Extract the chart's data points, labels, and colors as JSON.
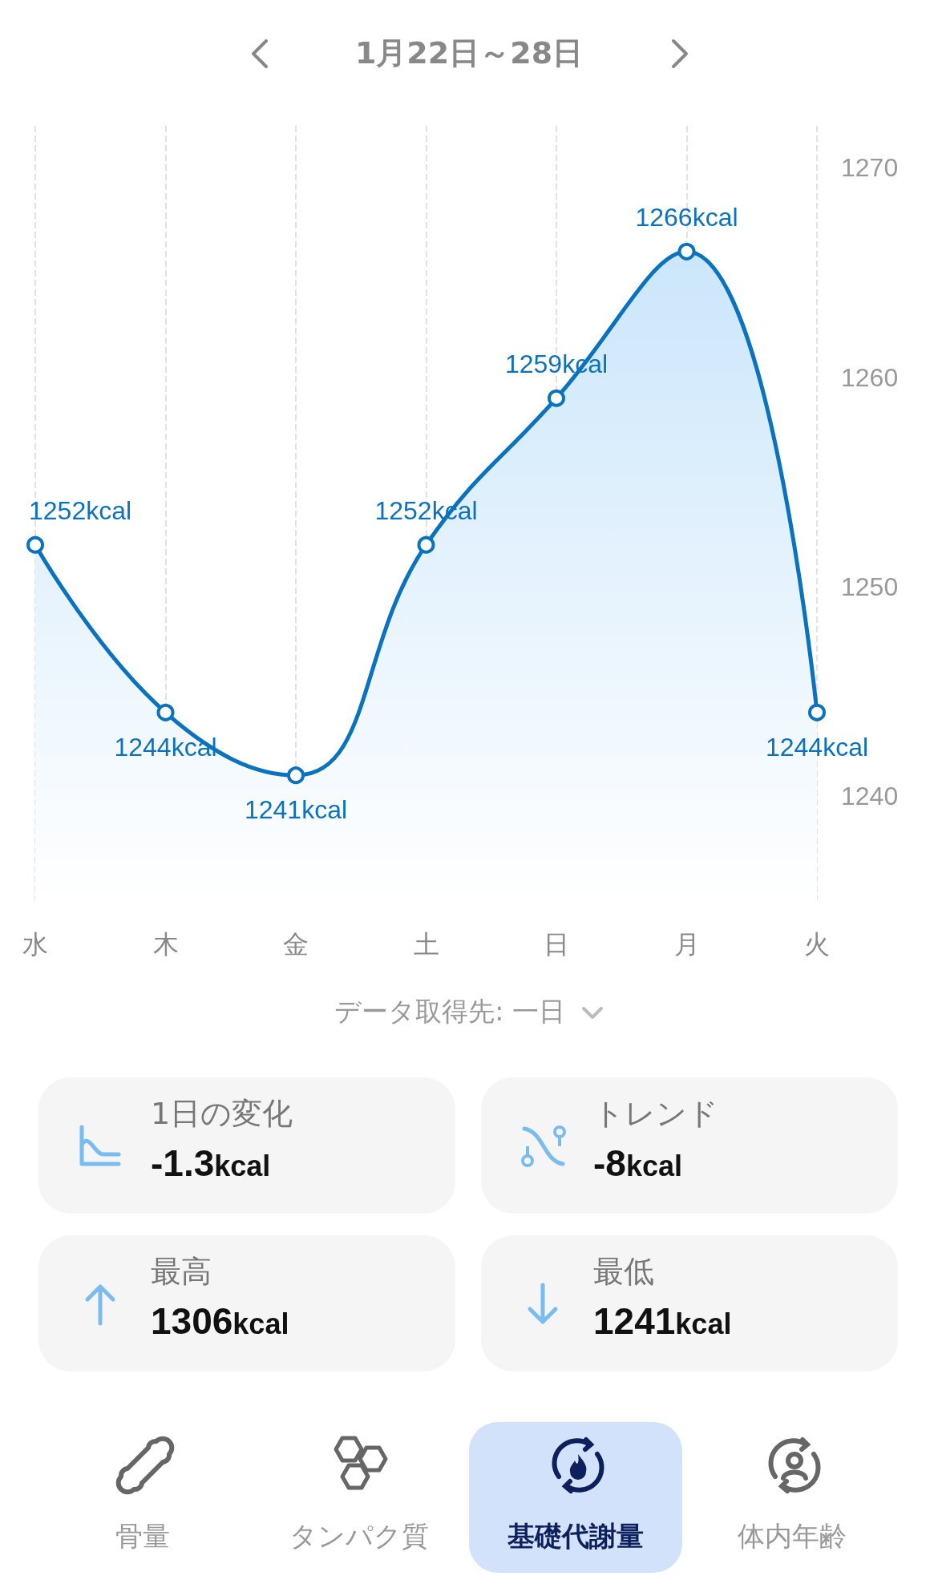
{
  "chart_data": [
    {
      "type": "area",
      "title": "1月22日～28日",
      "categories": [
        "水",
        "木",
        "金",
        "土",
        "日",
        "月",
        "火"
      ],
      "series": [
        {
          "color": "#0b72be",
          "values": [
            1252,
            1244,
            1241,
            1252,
            1259,
            1266,
            1244
          ],
          "value_labels": [
            "1252kcal",
            "1244kcal",
            "1241kcal",
            "1252kcal",
            "1259kcal",
            "1266kcal",
            "1244kcal"
          ]
        }
      ],
      "ylim": [
        1235,
        1272
      ],
      "yticks": [
        1240,
        1250,
        1260,
        1270
      ],
      "grid": "x",
      "marker": "circle",
      "line_style": "solid",
      "annotations": [
        "データ取得先: 一日"
      ]
    },
    {
      "type": "other",
      "annotations": [
        "1日の変化",
        "-1.3kcal",
        "トレンド",
        "-8kcal",
        "最高",
        "1306kcal",
        "最低",
        "1241kcal",
        "骨量",
        "タンパク質",
        "基礎代謝量",
        "体内年齢"
      ]
    }
  ]
}
